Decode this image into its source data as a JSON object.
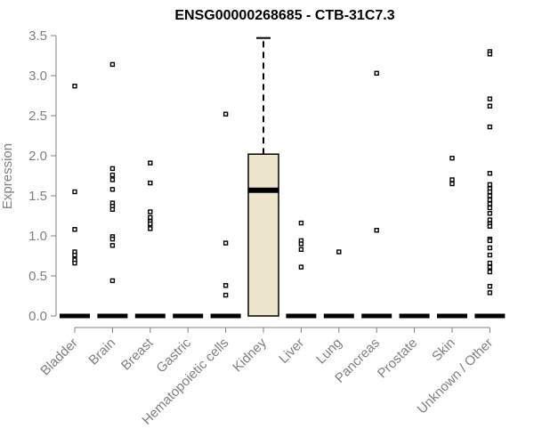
{
  "chart_data": {
    "type": "box",
    "title": "ENSG00000268685 - CTB-31C7.3",
    "xlabel": "",
    "ylabel": "Expression",
    "ylim": [
      0,
      3.5
    ],
    "yticks": [
      "0.0",
      "0.5",
      "1.0",
      "1.5",
      "2.0",
      "2.5",
      "3.0",
      "3.5"
    ],
    "grid": false,
    "legend": "none",
    "box_fill_color": "#ede6cc",
    "outlier_color": "#000000",
    "axis_color": "#808080",
    "categories": [
      "Bladder",
      "Brain",
      "Breast",
      "Gastric",
      "Hematopoietic cells",
      "Kidney",
      "Liver",
      "Lung",
      "Pancreas",
      "Prostate",
      "Skin",
      "Unknown / Other"
    ],
    "boxes": [
      {
        "category": "Bladder",
        "q1": 0,
        "median": 0,
        "q3": 0,
        "whisker_low": 0,
        "whisker_high": 0,
        "outliers": [
          2.87,
          1.55,
          1.08,
          0.8,
          0.76,
          0.7,
          0.66
        ]
      },
      {
        "category": "Brain",
        "q1": 0,
        "median": 0,
        "q3": 0,
        "whisker_low": 0,
        "whisker_high": 0,
        "outliers": [
          3.14,
          1.84,
          1.76,
          1.7,
          1.58,
          1.41,
          1.37,
          1.33,
          0.99,
          0.96,
          0.88,
          0.44
        ]
      },
      {
        "category": "Breast",
        "q1": 0,
        "median": 0,
        "q3": 0,
        "whisker_low": 0,
        "whisker_high": 0,
        "outliers": [
          1.91,
          1.66,
          1.3,
          1.23,
          1.18,
          1.15,
          1.09
        ]
      },
      {
        "category": "Gastric",
        "q1": 0,
        "median": 0,
        "q3": 0,
        "whisker_low": 0,
        "whisker_high": 0,
        "outliers": []
      },
      {
        "category": "Hematopoietic cells",
        "q1": 0,
        "median": 0,
        "q3": 0,
        "whisker_low": 0,
        "whisker_high": 0,
        "outliers": [
          2.52,
          0.91,
          0.38,
          0.26
        ]
      },
      {
        "category": "Kidney",
        "q1": 0,
        "median": 1.57,
        "q3": 2.02,
        "whisker_low": 0,
        "whisker_high": 3.47,
        "outliers": []
      },
      {
        "category": "Liver",
        "q1": 0,
        "median": 0,
        "q3": 0,
        "whisker_low": 0,
        "whisker_high": 0,
        "outliers": [
          1.16,
          0.94,
          0.9,
          0.83,
          0.61
        ]
      },
      {
        "category": "Lung",
        "q1": 0,
        "median": 0,
        "q3": 0,
        "whisker_low": 0,
        "whisker_high": 0,
        "outliers": [
          0.8
        ]
      },
      {
        "category": "Pancreas",
        "q1": 0,
        "median": 0,
        "q3": 0,
        "whisker_low": 0,
        "whisker_high": 0,
        "outliers": [
          3.03,
          1.07
        ]
      },
      {
        "category": "Prostate",
        "q1": 0,
        "median": 0,
        "q3": 0,
        "whisker_low": 0,
        "whisker_high": 0,
        "outliers": []
      },
      {
        "category": "Skin",
        "q1": 0,
        "median": 0,
        "q3": 0,
        "whisker_low": 0,
        "whisker_high": 0,
        "outliers": [
          1.97,
          1.7,
          1.65
        ]
      },
      {
        "category": "Unknown / Other",
        "q1": 0,
        "median": 0,
        "q3": 0,
        "whisker_low": 0,
        "whisker_high": 0,
        "outliers": [
          3.3,
          3.27,
          2.71,
          2.62,
          2.36,
          1.78,
          1.64,
          1.59,
          1.55,
          1.5,
          1.45,
          1.4,
          1.35,
          1.28,
          1.2,
          1.15,
          1.12,
          0.96,
          0.94,
          0.85,
          0.76,
          0.66,
          0.61,
          0.55,
          0.37,
          0.29
        ]
      }
    ]
  }
}
